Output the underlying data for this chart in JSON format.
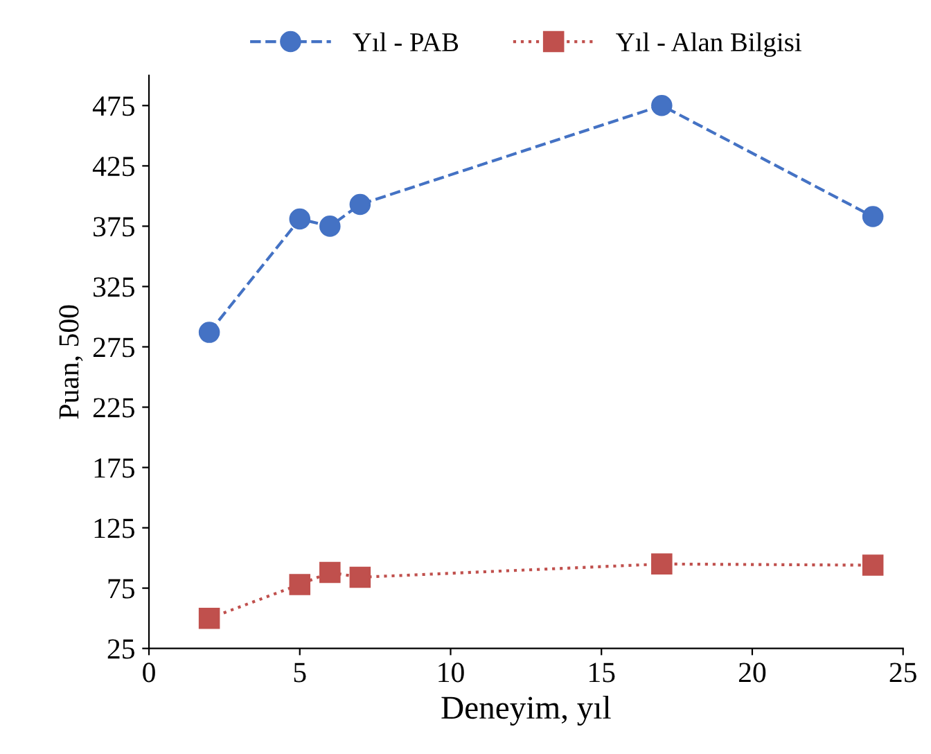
{
  "chart_data": {
    "type": "line",
    "xlabel": "Deneyim, yıl",
    "ylabel": "Puan, 500",
    "xlim": [
      0,
      25
    ],
    "xticks": [
      0,
      5,
      10,
      15,
      20,
      25
    ],
    "ylim": [
      25,
      500
    ],
    "yticks": [
      25,
      75,
      125,
      175,
      225,
      275,
      325,
      375,
      425,
      475
    ],
    "grid": false,
    "legend": "top",
    "series": [
      {
        "name": "Yıl - PAB",
        "color": "#4472c4",
        "marker": "circle",
        "line_style": "dashed",
        "x": [
          2,
          5,
          6,
          7,
          17,
          24
        ],
        "values": [
          287,
          381,
          375,
          393,
          475,
          383
        ]
      },
      {
        "name": "Yıl - Alan Bilgisi",
        "color": "#c0504d",
        "marker": "square",
        "line_style": "dotted",
        "x": [
          2,
          5,
          6,
          7,
          17,
          24
        ],
        "values": [
          50,
          78,
          88,
          84,
          95,
          94
        ]
      }
    ]
  }
}
